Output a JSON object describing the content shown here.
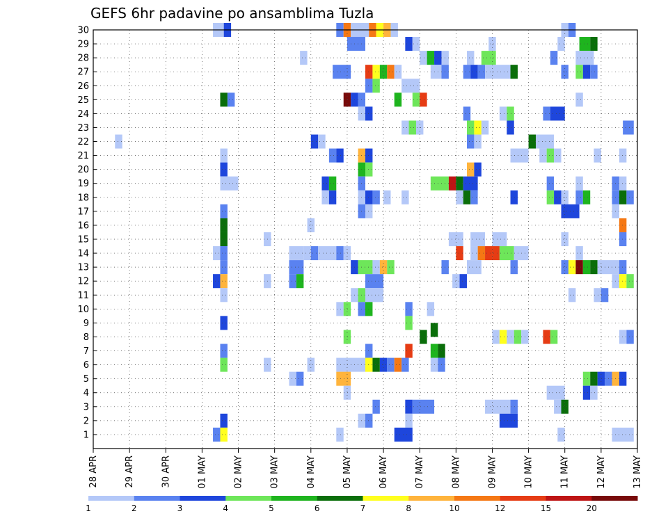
{
  "chart_data": {
    "type": "heatmap",
    "title": "GEFS 6hr padavine po ansamblima Tuzla",
    "x_tick_labels": [
      "28 APR",
      "29 APR",
      "30 APR",
      "01 MAY",
      "02 MAY",
      "03 MAY",
      "04 MAY",
      "05 MAY",
      "06 MAY",
      "07 MAY",
      "08 MAY",
      "09 MAY",
      "10 MAY",
      "11 MAY",
      "12 MAY",
      "13 MAY"
    ],
    "x_range_days": [
      0,
      15
    ],
    "y_tick_labels": [
      "1",
      "2",
      "3",
      "4",
      "5",
      "6",
      "7",
      "8",
      "9",
      "10",
      "11",
      "12",
      "13",
      "14",
      "15",
      "16",
      "17",
      "18",
      "19",
      "20",
      "21",
      "22",
      "23",
      "24",
      "25",
      "26",
      "27",
      "28",
      "29",
      "30"
    ],
    "y_range": [
      0,
      30
    ],
    "grid": true,
    "legend_position": "bottom",
    "color_levels": [
      {
        "label": "1",
        "color": "#b4c8f8"
      },
      {
        "label": "2",
        "color": "#5a82f0"
      },
      {
        "label": "3",
        "color": "#1e46dc"
      },
      {
        "label": "4",
        "color": "#6ee65a"
      },
      {
        "label": "5",
        "color": "#1eb41e"
      },
      {
        "label": "6",
        "color": "#0a6e0a"
      },
      {
        "label": "7",
        "color": "#ffff1e"
      },
      {
        "label": "8",
        "color": "#ffb43c"
      },
      {
        "label": "10",
        "color": "#f57814"
      },
      {
        "label": "12",
        "color": "#e63c14"
      },
      {
        "label": "15",
        "color": "#be1414"
      },
      {
        "label": "20",
        "color": "#780a0a"
      }
    ],
    "cells": [
      [
        30,
        3.3,
        3.6,
        0
      ],
      [
        30,
        3.6,
        3.8,
        2
      ],
      [
        30,
        6.7,
        6.9,
        1
      ],
      [
        30,
        6.9,
        7.1,
        8
      ],
      [
        30,
        7.1,
        7.6,
        0
      ],
      [
        30,
        7.6,
        7.8,
        8
      ],
      [
        30,
        7.8,
        8.0,
        6
      ],
      [
        30,
        8.0,
        8.2,
        7
      ],
      [
        30,
        8.2,
        8.4,
        0
      ],
      [
        30,
        12.9,
        13.1,
        0
      ],
      [
        30,
        13.1,
        13.3,
        1
      ],
      [
        29,
        7.0,
        7.5,
        1
      ],
      [
        29,
        8.6,
        8.8,
        2
      ],
      [
        29,
        8.8,
        9.0,
        0
      ],
      [
        29,
        10.9,
        11.1,
        0
      ],
      [
        29,
        12.8,
        13.0,
        0
      ],
      [
        29,
        13.4,
        13.7,
        4
      ],
      [
        29,
        13.7,
        13.9,
        5
      ],
      [
        28,
        5.7,
        5.9,
        0
      ],
      [
        28,
        9.0,
        9.2,
        0
      ],
      [
        28,
        9.2,
        9.4,
        4
      ],
      [
        28,
        9.4,
        9.6,
        2
      ],
      [
        28,
        9.6,
        9.8,
        0
      ],
      [
        28,
        10.3,
        10.5,
        0
      ],
      [
        28,
        10.7,
        11.1,
        3
      ],
      [
        28,
        12.6,
        12.8,
        1
      ],
      [
        28,
        13.3,
        13.8,
        0
      ],
      [
        27,
        6.6,
        7.1,
        1
      ],
      [
        27,
        7.5,
        7.7,
        9
      ],
      [
        27,
        7.7,
        7.9,
        6
      ],
      [
        27,
        7.9,
        8.1,
        4
      ],
      [
        27,
        8.1,
        8.3,
        8
      ],
      [
        27,
        8.3,
        8.5,
        0
      ],
      [
        27,
        9.3,
        9.6,
        0
      ],
      [
        27,
        9.6,
        9.8,
        1
      ],
      [
        27,
        10.2,
        10.4,
        1
      ],
      [
        27,
        10.4,
        10.6,
        2
      ],
      [
        27,
        10.6,
        10.8,
        1
      ],
      [
        27,
        10.8,
        11.5,
        0
      ],
      [
        27,
        11.5,
        11.7,
        5
      ],
      [
        27,
        12.9,
        13.1,
        1
      ],
      [
        27,
        13.3,
        13.5,
        3
      ],
      [
        27,
        13.5,
        13.7,
        2
      ],
      [
        27,
        13.7,
        13.9,
        1
      ],
      [
        26,
        7.5,
        7.7,
        1
      ],
      [
        26,
        7.7,
        7.9,
        3
      ],
      [
        26,
        8.5,
        9.0,
        0
      ],
      [
        25,
        3.5,
        3.7,
        5
      ],
      [
        25,
        3.7,
        3.9,
        1
      ],
      [
        25,
        6.9,
        7.1,
        11
      ],
      [
        25,
        7.1,
        7.3,
        2
      ],
      [
        25,
        7.3,
        7.5,
        1
      ],
      [
        25,
        8.3,
        8.5,
        4
      ],
      [
        25,
        8.8,
        9.0,
        3
      ],
      [
        25,
        9.0,
        9.2,
        9
      ],
      [
        25,
        13.3,
        13.5,
        0
      ],
      [
        24,
        7.3,
        7.5,
        0
      ],
      [
        24,
        7.5,
        7.7,
        2
      ],
      [
        24,
        10.2,
        10.4,
        1
      ],
      [
        24,
        11.2,
        11.4,
        0
      ],
      [
        24,
        11.4,
        11.6,
        3
      ],
      [
        24,
        12.4,
        12.6,
        1
      ],
      [
        24,
        12.6,
        13.0,
        2
      ],
      [
        23,
        8.5,
        8.7,
        0
      ],
      [
        23,
        8.7,
        8.9,
        3
      ],
      [
        23,
        8.9,
        9.1,
        0
      ],
      [
        23,
        10.3,
        10.5,
        3
      ],
      [
        23,
        10.5,
        10.7,
        6
      ],
      [
        23,
        10.7,
        10.9,
        0
      ],
      [
        23,
        11.4,
        11.6,
        2
      ],
      [
        23,
        14.6,
        14.9,
        1
      ],
      [
        22,
        0.6,
        0.8,
        0
      ],
      [
        22,
        6.0,
        6.2,
        2
      ],
      [
        22,
        6.2,
        6.4,
        0
      ],
      [
        22,
        10.3,
        10.5,
        1
      ],
      [
        22,
        10.5,
        10.7,
        0
      ],
      [
        22,
        12.0,
        12.2,
        5
      ],
      [
        22,
        12.2,
        12.7,
        0
      ],
      [
        21,
        3.5,
        3.7,
        0
      ],
      [
        21,
        6.5,
        6.7,
        1
      ],
      [
        21,
        6.7,
        6.9,
        2
      ],
      [
        21,
        7.3,
        7.5,
        7
      ],
      [
        21,
        7.5,
        7.7,
        2
      ],
      [
        21,
        11.5,
        12.0,
        0
      ],
      [
        21,
        12.3,
        12.5,
        0
      ],
      [
        21,
        12.5,
        12.7,
        3
      ],
      [
        21,
        12.7,
        12.9,
        0
      ],
      [
        21,
        13.8,
        14.0,
        0
      ],
      [
        21,
        14.5,
        14.7,
        0
      ],
      [
        20,
        3.5,
        3.7,
        2
      ],
      [
        20,
        7.3,
        7.5,
        4
      ],
      [
        20,
        7.5,
        7.7,
        3
      ],
      [
        20,
        10.3,
        10.5,
        7
      ],
      [
        20,
        10.5,
        10.7,
        2
      ],
      [
        19,
        3.5,
        4.0,
        0
      ],
      [
        19,
        6.3,
        6.5,
        2
      ],
      [
        19,
        6.5,
        6.7,
        4
      ],
      [
        19,
        7.3,
        7.5,
        1
      ],
      [
        19,
        9.3,
        9.8,
        3
      ],
      [
        19,
        9.8,
        10.0,
        10
      ],
      [
        19,
        10.0,
        10.2,
        5
      ],
      [
        19,
        10.2,
        10.6,
        2
      ],
      [
        19,
        12.5,
        12.7,
        1
      ],
      [
        19,
        13.3,
        13.5,
        0
      ],
      [
        19,
        14.3,
        14.5,
        1
      ],
      [
        19,
        14.5,
        14.7,
        0
      ],
      [
        18,
        6.3,
        6.5,
        0
      ],
      [
        18,
        6.5,
        6.7,
        2
      ],
      [
        18,
        7.3,
        7.5,
        0
      ],
      [
        18,
        7.5,
        7.7,
        2
      ],
      [
        18,
        7.7,
        7.9,
        1
      ],
      [
        18,
        8.0,
        8.2,
        0
      ],
      [
        18,
        8.5,
        8.7,
        0
      ],
      [
        18,
        10.0,
        10.2,
        0
      ],
      [
        18,
        10.2,
        10.4,
        5
      ],
      [
        18,
        10.4,
        10.6,
        1
      ],
      [
        18,
        11.5,
        11.7,
        2
      ],
      [
        18,
        12.5,
        12.7,
        3
      ],
      [
        18,
        12.7,
        12.9,
        2
      ],
      [
        18,
        12.9,
        13.1,
        0
      ],
      [
        18,
        13.3,
        13.5,
        1
      ],
      [
        18,
        13.5,
        13.7,
        4
      ],
      [
        18,
        14.3,
        14.5,
        1
      ],
      [
        18,
        14.5,
        14.7,
        5
      ],
      [
        18,
        14.7,
        14.9,
        1
      ],
      [
        17,
        3.5,
        3.7,
        1
      ],
      [
        17,
        7.3,
        7.5,
        1
      ],
      [
        17,
        7.5,
        7.7,
        0
      ],
      [
        17,
        12.9,
        13.4,
        2
      ],
      [
        17,
        14.3,
        14.5,
        0
      ],
      [
        16,
        3.5,
        3.7,
        5
      ],
      [
        16,
        5.9,
        6.1,
        0
      ],
      [
        16,
        14.5,
        14.7,
        8
      ],
      [
        15,
        3.5,
        3.7,
        5
      ],
      [
        15,
        4.7,
        4.9,
        0
      ],
      [
        15,
        9.8,
        10.2,
        0
      ],
      [
        15,
        10.4,
        10.8,
        0
      ],
      [
        15,
        11.0,
        11.4,
        0
      ],
      [
        15,
        12.9,
        13.1,
        0
      ],
      [
        15,
        14.5,
        14.7,
        1
      ],
      [
        14,
        3.3,
        3.5,
        0
      ],
      [
        14,
        3.5,
        3.7,
        1
      ],
      [
        14,
        5.4,
        5.8,
        0
      ],
      [
        14,
        5.8,
        6.0,
        0
      ],
      [
        14,
        6.0,
        6.2,
        1
      ],
      [
        14,
        6.2,
        6.7,
        0
      ],
      [
        14,
        6.7,
        6.9,
        1
      ],
      [
        14,
        6.9,
        7.1,
        0
      ],
      [
        14,
        10.0,
        10.2,
        9
      ],
      [
        14,
        10.4,
        10.6,
        0
      ],
      [
        14,
        10.6,
        10.8,
        8
      ],
      [
        14,
        10.8,
        11.0,
        9
      ],
      [
        14,
        11.0,
        11.2,
        9
      ],
      [
        14,
        11.2,
        11.6,
        3
      ],
      [
        14,
        11.6,
        12.0,
        0
      ],
      [
        14,
        13.3,
        13.5,
        0
      ],
      [
        13,
        3.5,
        3.7,
        1
      ],
      [
        13,
        5.4,
        5.8,
        1
      ],
      [
        13,
        7.1,
        7.3,
        2
      ],
      [
        13,
        7.3,
        7.5,
        3
      ],
      [
        13,
        7.5,
        7.7,
        3
      ],
      [
        13,
        7.7,
        7.9,
        0
      ],
      [
        13,
        7.9,
        8.1,
        7
      ],
      [
        13,
        8.1,
        8.3,
        3
      ],
      [
        13,
        9.6,
        9.8,
        1
      ],
      [
        13,
        10.3,
        10.7,
        0
      ],
      [
        13,
        11.5,
        11.7,
        1
      ],
      [
        13,
        12.9,
        13.1,
        1
      ],
      [
        13,
        13.1,
        13.3,
        6
      ],
      [
        13,
        13.3,
        13.5,
        11
      ],
      [
        13,
        13.5,
        13.7,
        4
      ],
      [
        13,
        13.7,
        13.9,
        5
      ],
      [
        13,
        13.9,
        14.5,
        0
      ],
      [
        13,
        14.5,
        14.7,
        1
      ],
      [
        12,
        3.3,
        3.5,
        2
      ],
      [
        12,
        3.5,
        3.7,
        7
      ],
      [
        12,
        4.7,
        4.9,
        0
      ],
      [
        12,
        5.4,
        5.6,
        1
      ],
      [
        12,
        5.6,
        5.8,
        4
      ],
      [
        12,
        7.5,
        8.0,
        1
      ],
      [
        12,
        9.9,
        10.1,
        0
      ],
      [
        12,
        10.1,
        10.3,
        2
      ],
      [
        12,
        14.3,
        14.5,
        0
      ],
      [
        12,
        14.5,
        14.7,
        6
      ],
      [
        12,
        14.7,
        14.9,
        3
      ],
      [
        11,
        3.5,
        3.7,
        0
      ],
      [
        11,
        7.1,
        7.3,
        0
      ],
      [
        11,
        7.3,
        7.5,
        3
      ],
      [
        11,
        7.5,
        8.0,
        0
      ],
      [
        11,
        13.1,
        13.3,
        0
      ],
      [
        11,
        13.8,
        14.0,
        0
      ],
      [
        11,
        14.0,
        14.2,
        1
      ],
      [
        10,
        6.7,
        6.9,
        0
      ],
      [
        10,
        6.9,
        7.1,
        3
      ],
      [
        10,
        7.3,
        7.5,
        1
      ],
      [
        10,
        7.5,
        7.7,
        4
      ],
      [
        10,
        8.6,
        8.8,
        1
      ],
      [
        10,
        9.2,
        9.4,
        0
      ],
      [
        9,
        3.5,
        3.7,
        2
      ],
      [
        9,
        8.6,
        8.8,
        3
      ],
      [
        8,
        6.9,
        7.1,
        3
      ],
      [
        8,
        9.0,
        9.2,
        5
      ],
      [
        8,
        11.0,
        11.2,
        0
      ],
      [
        8,
        11.2,
        11.4,
        6
      ],
      [
        8,
        11.4,
        11.6,
        0
      ],
      [
        8,
        11.6,
        11.8,
        3
      ],
      [
        8,
        11.8,
        12.0,
        0
      ],
      [
        8,
        12.4,
        12.6,
        9
      ],
      [
        8,
        12.6,
        12.8,
        3
      ],
      [
        8,
        14.5,
        14.7,
        0
      ],
      [
        8,
        14.7,
        14.9,
        1
      ],
      [
        7,
        3.5,
        3.7,
        1
      ],
      [
        7,
        7.5,
        7.7,
        1
      ],
      [
        7,
        8.6,
        8.8,
        9
      ],
      [
        8.5,
        9.3,
        9.5,
        5
      ],
      [
        7,
        9.3,
        9.5,
        4
      ],
      [
        7,
        9.5,
        9.7,
        5
      ],
      [
        6,
        3.5,
        3.7,
        3
      ],
      [
        6,
        4.7,
        4.9,
        0
      ],
      [
        6,
        5.9,
        6.1,
        0
      ],
      [
        6,
        6.7,
        7.5,
        0
      ],
      [
        6,
        7.5,
        7.7,
        6
      ],
      [
        6,
        7.7,
        7.9,
        5
      ],
      [
        6,
        7.9,
        8.1,
        2
      ],
      [
        6,
        8.1,
        8.3,
        1
      ],
      [
        6,
        8.3,
        8.5,
        8
      ],
      [
        6,
        8.5,
        8.7,
        1
      ],
      [
        6,
        9.3,
        9.5,
        0
      ],
      [
        6,
        9.5,
        9.7,
        1
      ],
      [
        5,
        5.4,
        5.6,
        0
      ],
      [
        5,
        5.6,
        5.8,
        1
      ],
      [
        5,
        6.7,
        7.1,
        7
      ],
      [
        5,
        13.5,
        13.7,
        3
      ],
      [
        5,
        13.7,
        13.9,
        5
      ],
      [
        5,
        13.9,
        14.1,
        2
      ],
      [
        5,
        14.1,
        14.3,
        1
      ],
      [
        5,
        14.3,
        14.5,
        7
      ],
      [
        5,
        14.5,
        14.7,
        2
      ],
      [
        4,
        6.9,
        7.1,
        0
      ],
      [
        4,
        12.5,
        13.0,
        0
      ],
      [
        4,
        13.5,
        13.7,
        2
      ],
      [
        4,
        13.7,
        13.9,
        0
      ],
      [
        3,
        7.7,
        7.9,
        1
      ],
      [
        3,
        8.6,
        8.8,
        2
      ],
      [
        3,
        8.8,
        9.4,
        1
      ],
      [
        3,
        10.8,
        11.5,
        0
      ],
      [
        3,
        11.5,
        11.7,
        1
      ],
      [
        3,
        12.7,
        12.9,
        0
      ],
      [
        3,
        12.9,
        13.1,
        5
      ],
      [
        2,
        3.5,
        3.7,
        2
      ],
      [
        2,
        7.3,
        7.5,
        0
      ],
      [
        2,
        7.5,
        7.7,
        1
      ],
      [
        2,
        8.6,
        8.8,
        0
      ],
      [
        2,
        11.2,
        11.7,
        2
      ],
      [
        1,
        3.3,
        3.5,
        1
      ],
      [
        1,
        3.5,
        3.7,
        6
      ],
      [
        1,
        6.7,
        6.9,
        0
      ],
      [
        1,
        8.3,
        8.8,
        2
      ],
      [
        1,
        12.8,
        13.0,
        0
      ],
      [
        1,
        14.3,
        14.9,
        0
      ]
    ]
  }
}
